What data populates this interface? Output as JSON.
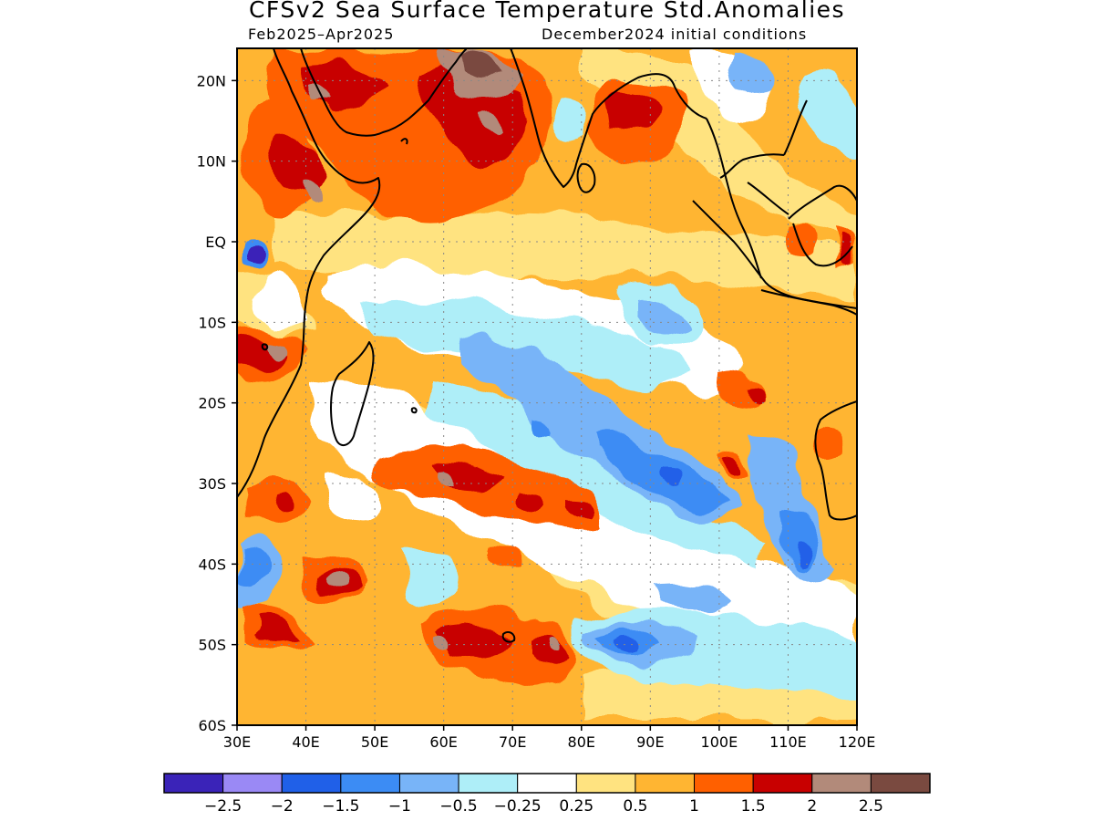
{
  "title": "CFSv2 Sea Surface Temperature Std.Anomalies",
  "subtitle_left": "Feb2025–Apr2025",
  "subtitle_right": "December2024 initial conditions",
  "map": {
    "lon_range": [
      30,
      120
    ],
    "lat_range": [
      -60,
      24
    ],
    "lon_ticks": [
      {
        "value": 30,
        "label": "30E"
      },
      {
        "value": 40,
        "label": "40E"
      },
      {
        "value": 50,
        "label": "50E"
      },
      {
        "value": 60,
        "label": "60E"
      },
      {
        "value": 70,
        "label": "70E"
      },
      {
        "value": 80,
        "label": "80E"
      },
      {
        "value": 90,
        "label": "90E"
      },
      {
        "value": 100,
        "label": "100E"
      },
      {
        "value": 110,
        "label": "110E"
      },
      {
        "value": 120,
        "label": "120E"
      }
    ],
    "lat_ticks": [
      {
        "value": 20,
        "label": "20N"
      },
      {
        "value": 10,
        "label": "10N"
      },
      {
        "value": 0,
        "label": "EQ"
      },
      {
        "value": -10,
        "label": "10S"
      },
      {
        "value": -20,
        "label": "20S"
      },
      {
        "value": -30,
        "label": "30S"
      },
      {
        "value": -40,
        "label": "40S"
      },
      {
        "value": -50,
        "label": "50S"
      },
      {
        "value": -60,
        "label": "60S"
      }
    ],
    "grid": "dotted"
  },
  "colorbar": {
    "colors": [
      "#3a23b8",
      "#9a89f5",
      "#2060e8",
      "#3c8cf4",
      "#78b4f8",
      "#aeeef8",
      "#ffffff",
      "#ffe380",
      "#ffb532",
      "#ff6000",
      "#c80000",
      "#b28a7a",
      "#7a4a40"
    ],
    "labels": [
      "−2.5",
      "−2",
      "−1.5",
      "−1",
      "−0.5",
      "−0.25",
      "0.25",
      "0.5",
      "1",
      "1.5",
      "2",
      "2.5"
    ]
  }
}
